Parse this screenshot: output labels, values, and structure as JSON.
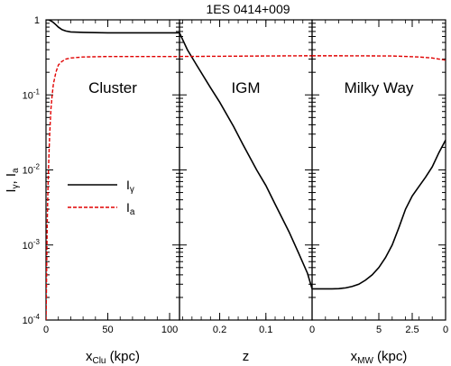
{
  "chart_data": {
    "type": "line",
    "title": "1ES 0414+009",
    "ylabel": "I_γ, I_a",
    "yscale": "log",
    "ylim": [
      0.0001,
      1
    ],
    "y_ticks": [
      {
        "value": 1,
        "label": "1"
      },
      {
        "value": 0.1,
        "base": "10",
        "exp": "-1"
      },
      {
        "value": 0.01,
        "base": "10",
        "exp": "-2"
      },
      {
        "value": 0.001,
        "base": "10",
        "exp": "-3"
      },
      {
        "value": 0.0001,
        "base": "10",
        "exp": "-4"
      }
    ],
    "legend": {
      "placement": "center-left of first panel",
      "entries": [
        {
          "label": "I_γ",
          "base": "I",
          "sub": "γ",
          "style": "solid",
          "color": "#000000"
        },
        {
          "label": "I_a",
          "base": "I",
          "sub": "a",
          "style": "dashed",
          "color": "#e00000"
        }
      ]
    },
    "panels": [
      {
        "title": "Cluster",
        "xlabel": "x_Clu (kpc)",
        "xlabel_parts": {
          "main": "x",
          "sub": "Clu",
          "tail": " (kpc)"
        },
        "xlim": [
          0,
          108
        ],
        "x_ticks": [
          0,
          50,
          100
        ],
        "series": [
          {
            "name": "I_γ",
            "x": [
              0,
              2,
              4,
              6,
              8,
              10,
              13,
              16,
              20,
              30,
              50,
              80,
              108
            ],
            "y": [
              1.0,
              1.0,
              0.97,
              0.92,
              0.86,
              0.8,
              0.74,
              0.71,
              0.69,
              0.68,
              0.67,
              0.67,
              0.67
            ]
          },
          {
            "name": "I_a",
            "x": [
              0,
              0.3,
              0.6,
              1,
              1.5,
              2,
              2.5,
              3,
              3.5,
              4,
              5,
              6,
              8,
              10,
              13,
              16,
              20,
              30,
              50,
              80,
              108
            ],
            "y": [
              0.0001,
              0.0002,
              0.0006,
              0.002,
              0.005,
              0.01,
              0.018,
              0.03,
              0.045,
              0.065,
              0.1,
              0.14,
              0.2,
              0.25,
              0.28,
              0.3,
              0.31,
              0.32,
              0.325,
              0.325,
              0.325
            ]
          }
        ]
      },
      {
        "title": "IGM",
        "xlabel": "z",
        "xlabel_parts": {
          "main": "z",
          "sub": "",
          "tail": ""
        },
        "xlim": [
          0.287,
          0
        ],
        "x_ticks": [
          0.2,
          0.1,
          0
        ],
        "series": [
          {
            "name": "I_γ",
            "x": [
              0.287,
              0.27,
              0.25,
              0.22,
              0.2,
              0.17,
              0.15,
              0.12,
              0.1,
              0.08,
              0.05,
              0.03,
              0.01,
              0
            ],
            "y": [
              0.67,
              0.4,
              0.25,
              0.125,
              0.08,
              0.038,
              0.022,
              0.01,
              0.0062,
              0.0035,
              0.0015,
              0.0008,
              0.00042,
              0.00026
            ]
          },
          {
            "name": "I_a",
            "x": [
              0.287,
              0.2,
              0.1,
              0.05,
              0.02,
              0
            ],
            "y": [
              0.325,
              0.327,
              0.33,
              0.331,
              0.332,
              0.332
            ]
          }
        ]
      },
      {
        "title": "Milky Way",
        "xlabel": "x_MW (kpc)",
        "xlabel_parts": {
          "main": "x",
          "sub": "MW",
          "tail": " (kpc)"
        },
        "xlim": [
          10,
          0
        ],
        "x_ticks": [
          {
            "value": 5,
            "label": "5"
          },
          {
            "value": 2.5,
            "label": "2.5"
          },
          {
            "value": 0,
            "label": "0"
          }
        ],
        "series": [
          {
            "name": "I_γ",
            "x": [
              10,
              9.5,
              9,
              8.5,
              8,
              7.5,
              7,
              6.5,
              6,
              5.5,
              5,
              4.5,
              4,
              3.5,
              3,
              2.5,
              2,
              1.5,
              1,
              0.5,
              0
            ],
            "y": [
              0.00026,
              0.00026,
              0.00026,
              0.00026,
              0.000262,
              0.000268,
              0.00028,
              0.0003,
              0.00034,
              0.0004,
              0.0005,
              0.00068,
              0.001,
              0.0017,
              0.003,
              0.0045,
              0.006,
              0.008,
              0.011,
              0.017,
              0.025
            ]
          },
          {
            "name": "I_a",
            "x": [
              10,
              8,
              6,
              4,
              2,
              1,
              0.5,
              0
            ],
            "y": [
              0.332,
              0.332,
              0.331,
              0.33,
              0.32,
              0.31,
              0.3,
              0.29
            ]
          }
        ]
      }
    ]
  }
}
